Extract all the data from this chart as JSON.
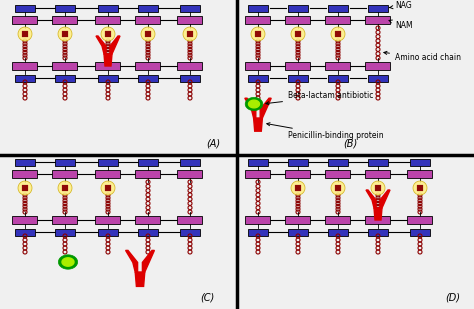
{
  "bg_color": "#f0f0f0",
  "panel_line_color": "black",
  "nag_color": "#3333bb",
  "nam_color": "#bb44aa",
  "chain_color": "#8b0000",
  "pbp_color": "#dd0000",
  "antibiotic_outer_color": "#009900",
  "antibiotic_inner_color": "#aaee00",
  "peptide_color": "#ffee88",
  "labels": {
    "A": "(A)",
    "B": "(B)",
    "C": "(C)",
    "D": "(D)"
  },
  "annotations": {
    "NAG": "NAG",
    "NAM": "NAM",
    "amino": "Amino acid chain",
    "beta": "Beta-lactam antibiotic",
    "pbp": "Penicillin-binding protein"
  }
}
